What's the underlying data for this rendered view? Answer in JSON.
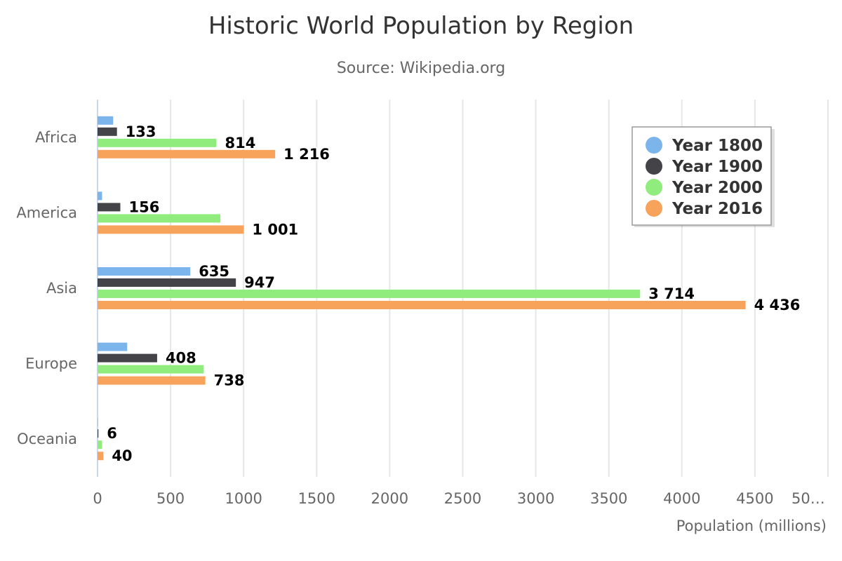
{
  "chart_data": {
    "type": "bar",
    "orientation": "horizontal",
    "title": "Historic World Population by Region",
    "subtitle": "Source: Wikipedia.org",
    "categories": [
      "Africa",
      "America",
      "Asia",
      "Europe",
      "Oceania"
    ],
    "series": [
      {
        "name": "Year 1800",
        "color": "#7cb5ec",
        "values": [
          107,
          31,
          635,
          203,
          2
        ],
        "labels": [
          null,
          null,
          "635",
          null,
          null
        ]
      },
      {
        "name": "Year 1900",
        "color": "#434348",
        "values": [
          133,
          156,
          947,
          408,
          6
        ],
        "labels": [
          "133",
          "156",
          "947",
          "408",
          "6"
        ]
      },
      {
        "name": "Year 2000",
        "color": "#90ed7d",
        "values": [
          814,
          841,
          3714,
          727,
          31
        ],
        "labels": [
          "814",
          null,
          "3 714",
          null,
          null
        ]
      },
      {
        "name": "Year 2016",
        "color": "#f7a35c",
        "values": [
          1216,
          1001,
          4436,
          738,
          40
        ],
        "labels": [
          "1 216",
          "1 001",
          "4 436",
          "738",
          "40"
        ]
      }
    ],
    "xlim": [
      0,
      5000
    ],
    "x_ticks": [
      "0",
      "500",
      "1000",
      "1500",
      "2000",
      "2500",
      "3000",
      "3500",
      "4000",
      "4500",
      "50…"
    ],
    "xlabel": "Population (millions)",
    "grid": true,
    "legend_position": "top-right"
  }
}
